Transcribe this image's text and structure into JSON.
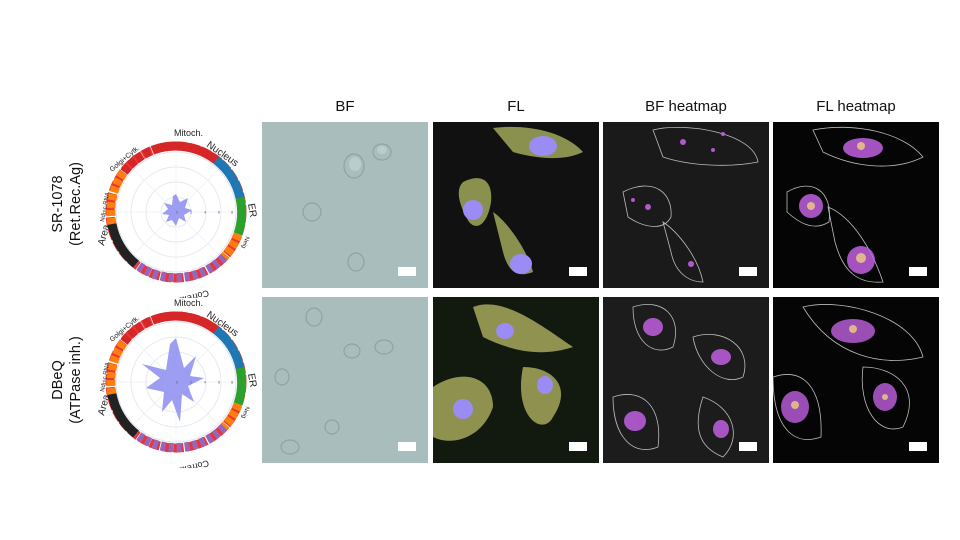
{
  "columns": [
    "BF",
    "FL",
    "BF heatmap",
    "FL heatmap"
  ],
  "rows": [
    {
      "name": "SR-1078",
      "subtitle": "(Ret.Rec.Ag)"
    },
    {
      "name": "DBeQ",
      "subtitle": "(ATPase inh.)"
    }
  ],
  "radar": {
    "segments": [
      "Mitoch.",
      "Nucleus",
      "ER",
      "Neig",
      "Correlation",
      "Area",
      "Ndi+c.RNA",
      "Golgi+Cytk."
    ],
    "ticks": [
      "0",
      "2",
      "4",
      "6",
      "8"
    ],
    "colors": {
      "mitoch": "#d62728",
      "nucleus": "#1f77b4",
      "er": "#2ca02c",
      "neig": "#ff7f0e",
      "correlation": "#9467bd",
      "area": "#222222",
      "fill": "#8c8cf0"
    }
  },
  "colors": {
    "bf_background": "#a9bdbd",
    "fl_background": "#111111",
    "heatmap_background": "#1a1a1a",
    "highlight": "#c060e0"
  }
}
